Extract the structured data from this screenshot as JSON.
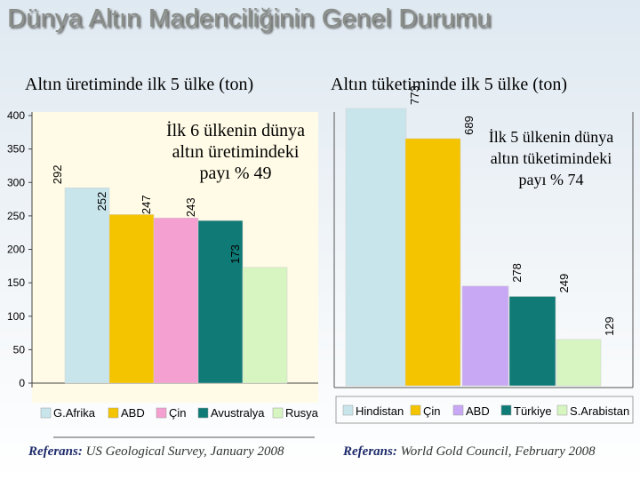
{
  "title": "Dünya Altın Madenciliğinin Genel Durumu",
  "chart_data": [
    {
      "type": "bar",
      "title": "Altın üretiminde ilk 5 ülke (ton)",
      "categories": [
        "G.Afrika",
        "ABD",
        "Çin",
        "Avustralya",
        "Rusya"
      ],
      "values": [
        292,
        252,
        247,
        243,
        173
      ],
      "value_labels": [
        "292",
        "252",
        "247",
        "243",
        "173"
      ],
      "ylim": [
        0,
        400
      ],
      "yticks": [
        "0",
        "50",
        "100",
        "150",
        "200",
        "250",
        "300",
        "350",
        "400"
      ],
      "colors": [
        "#c9e5ec",
        "#f5c400",
        "#f4a0d0",
        "#0f7a76",
        "#d6f5c0"
      ],
      "annotation": "İlk 6 ülkenin dünya altın üretimindeki payı % 49",
      "legend_position": "bottom",
      "grid": false
    },
    {
      "type": "bar",
      "title": "Altın tüketiminde ilk 5 ülke (ton)",
      "categories": [
        "Hindistan",
        "Çin",
        "ABD",
        "Türkiye",
        "S.Arabistan"
      ],
      "values": [
        773,
        689,
        278,
        249,
        129
      ],
      "value_labels": [
        "773",
        "689",
        "278",
        "249",
        "129"
      ],
      "colors": [
        "#c9e5ec",
        "#f5c400",
        "#c8a8f4",
        "#0f7a76",
        "#d6f5c0"
      ],
      "annotation": "İlk 5 ülkenin dünya altın tüketimindeki payı % 74",
      "legend_position": "bottom",
      "grid": false
    }
  ],
  "references": {
    "label": "Referans:",
    "left_source": "US Geological Survey, January 2008",
    "right_source": "World Gold Council, February 2008"
  }
}
